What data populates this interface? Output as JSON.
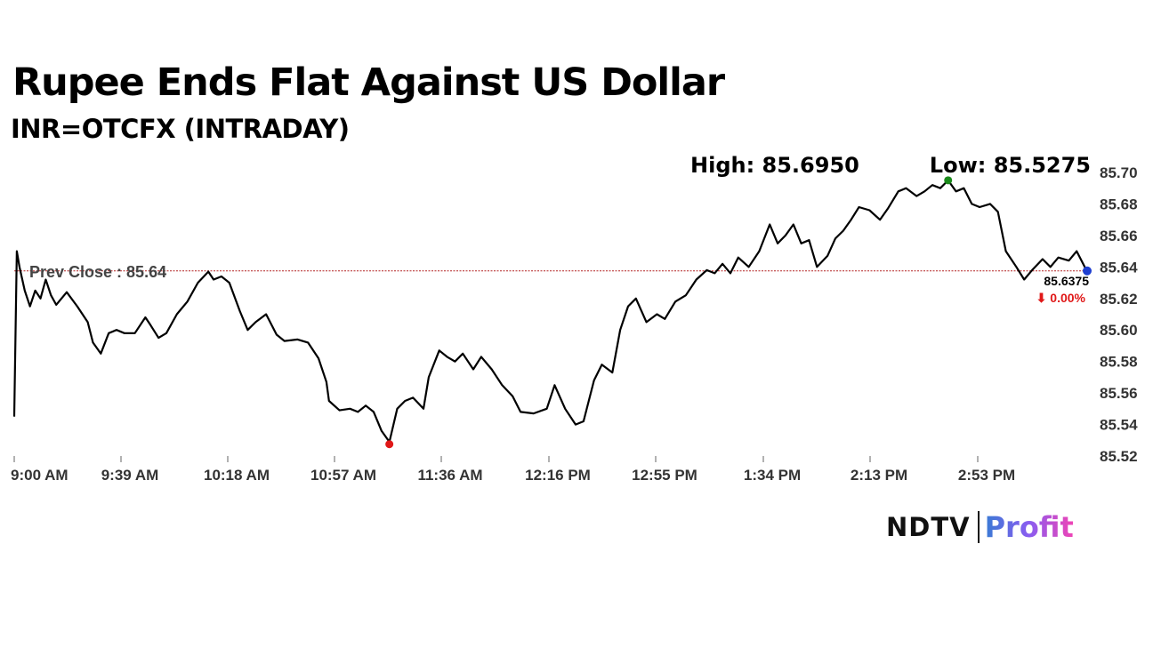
{
  "title": "Rupee Ends Flat Against US Dollar",
  "subtitle": "INR=OTCFX (INTRADAY)",
  "high_label": "High: 85.6950",
  "low_label": "Low: 85.5275",
  "prev_close_label": "Prev Close : 85.64",
  "last_value_label": "85.6375",
  "change_label": "⬇ 0.00%",
  "brand": {
    "ndtv": "NDTV",
    "profit": "Profit"
  },
  "colors": {
    "line": "#000000",
    "prev_close": "#b22222",
    "high_dot": "#1a8a1a",
    "low_dot": "#e01818",
    "last_dot": "#1f3fd0",
    "change": "#e01818"
  },
  "chart_data": {
    "type": "line",
    "title": "Rupee Ends Flat Against US Dollar",
    "subtitle": "INR=OTCFX (INTRADAY)",
    "xlabel": "",
    "ylabel": "",
    "ylim": [
      85.52,
      85.7
    ],
    "y_ticks": [
      "85.70",
      "85.68",
      "85.66",
      "85.64",
      "85.62",
      "85.60",
      "85.58",
      "85.56",
      "85.54",
      "85.52"
    ],
    "x_ticks": [
      "9:00 AM",
      "9:39 AM",
      "10:18 AM",
      "10:57 AM",
      "11:36 AM",
      "12:16 PM",
      "12:55 PM",
      "1:34 PM",
      "2:13 PM",
      "2:53 PM"
    ],
    "prev_close": 85.6375,
    "high": 85.695,
    "low": 85.5275,
    "last": 85.6375,
    "change_pct": 0.0,
    "grid": false,
    "series": [
      {
        "x_minutes": [
          0,
          1,
          2,
          4,
          6,
          8,
          10,
          12,
          14,
          16,
          20,
          24,
          28,
          30,
          33,
          36,
          39,
          42,
          46,
          50,
          52,
          55,
          58,
          62,
          66,
          70,
          74,
          76,
          79,
          82,
          86,
          89,
          92,
          96,
          100,
          103,
          108,
          112,
          116,
          119,
          120,
          124,
          128,
          131,
          134,
          137,
          140,
          143,
          146,
          149,
          152,
          156,
          158,
          162,
          165,
          168,
          171,
          175,
          178,
          182,
          186,
          190,
          193,
          198,
          203,
          206,
          210,
          214,
          217,
          221,
          224,
          228,
          231,
          234,
          237,
          241,
          245,
          248,
          252,
          256,
          260,
          264,
          267,
          270,
          273,
          276,
          280,
          284,
          288,
          291,
          294,
          297,
          300,
          303,
          306,
          310,
          313,
          316,
          319,
          322,
          326,
          330,
          333,
          337,
          340,
          344,
          347,
          350,
          353,
          356,
          359,
          362,
          365,
          368,
          372,
          375,
          378,
          382,
          385,
          388,
          392,
          395,
          398,
          402,
          405,
          409
        ],
        "values": [
          85.545,
          85.65,
          85.64,
          85.625,
          85.615,
          85.625,
          85.62,
          85.632,
          85.622,
          85.616,
          85.624,
          85.615,
          85.605,
          85.592,
          85.585,
          85.598,
          85.6,
          85.598,
          85.598,
          85.608,
          85.603,
          85.595,
          85.598,
          85.61,
          85.618,
          85.63,
          85.637,
          85.632,
          85.634,
          85.63,
          85.612,
          85.6,
          85.605,
          85.61,
          85.597,
          85.593,
          85.594,
          85.592,
          85.582,
          85.567,
          85.555,
          85.549,
          85.55,
          85.548,
          85.552,
          85.548,
          85.536,
          85.529,
          85.55,
          85.555,
          85.557,
          85.55,
          85.57,
          85.587,
          85.583,
          85.58,
          85.585,
          85.575,
          85.583,
          85.575,
          85.565,
          85.558,
          85.548,
          85.547,
          85.55,
          85.565,
          85.55,
          85.54,
          85.542,
          85.568,
          85.578,
          85.573,
          85.6,
          85.615,
          85.62,
          85.605,
          85.61,
          85.607,
          85.618,
          85.622,
          85.632,
          85.638,
          85.636,
          85.642,
          85.636,
          85.646,
          85.64,
          85.65,
          85.667,
          85.655,
          85.66,
          85.667,
          85.655,
          85.657,
          85.64,
          85.647,
          85.658,
          85.663,
          85.67,
          85.678,
          85.676,
          85.67,
          85.677,
          85.688,
          85.69,
          85.685,
          85.688,
          85.692,
          85.69,
          85.695,
          85.688,
          85.69,
          85.68,
          85.678,
          85.68,
          85.675,
          85.65,
          85.64,
          85.632,
          85.638,
          85.645,
          85.64,
          85.646,
          85.644,
          85.65,
          85.637
        ]
      }
    ]
  }
}
